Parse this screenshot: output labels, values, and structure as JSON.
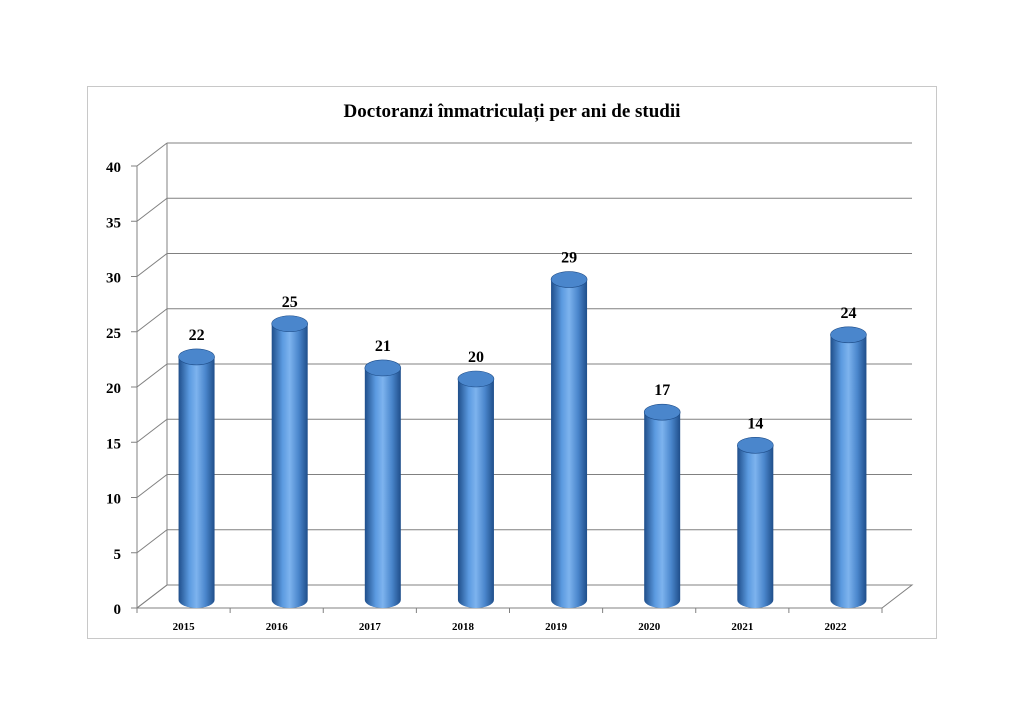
{
  "chart_data": {
    "type": "bar",
    "style": "3d-cylinder",
    "title": "Doctoranzi înmatriculați per ani de studii",
    "xlabel": "",
    "ylabel": "",
    "categories": [
      "2015",
      "2016",
      "2017",
      "2018",
      "2019",
      "2020",
      "2021",
      "2022"
    ],
    "values": [
      22,
      25,
      21,
      20,
      29,
      17,
      14,
      24
    ],
    "data_labels": [
      "22",
      "25",
      "21",
      "20",
      "29",
      "17",
      "14",
      "24"
    ],
    "ylim": [
      0,
      40
    ],
    "yticks": [
      0,
      5,
      10,
      15,
      20,
      25,
      30,
      35,
      40
    ],
    "ytick_labels": [
      "0",
      "5",
      "10",
      "15",
      "20",
      "25",
      "30",
      "35",
      "40"
    ],
    "grid": true,
    "legend": "none",
    "colors": {
      "bar": "#4a86cc",
      "bar_dark": "#1f4e8a",
      "bar_light": "#9cc6f2",
      "grid": "#808080"
    }
  }
}
